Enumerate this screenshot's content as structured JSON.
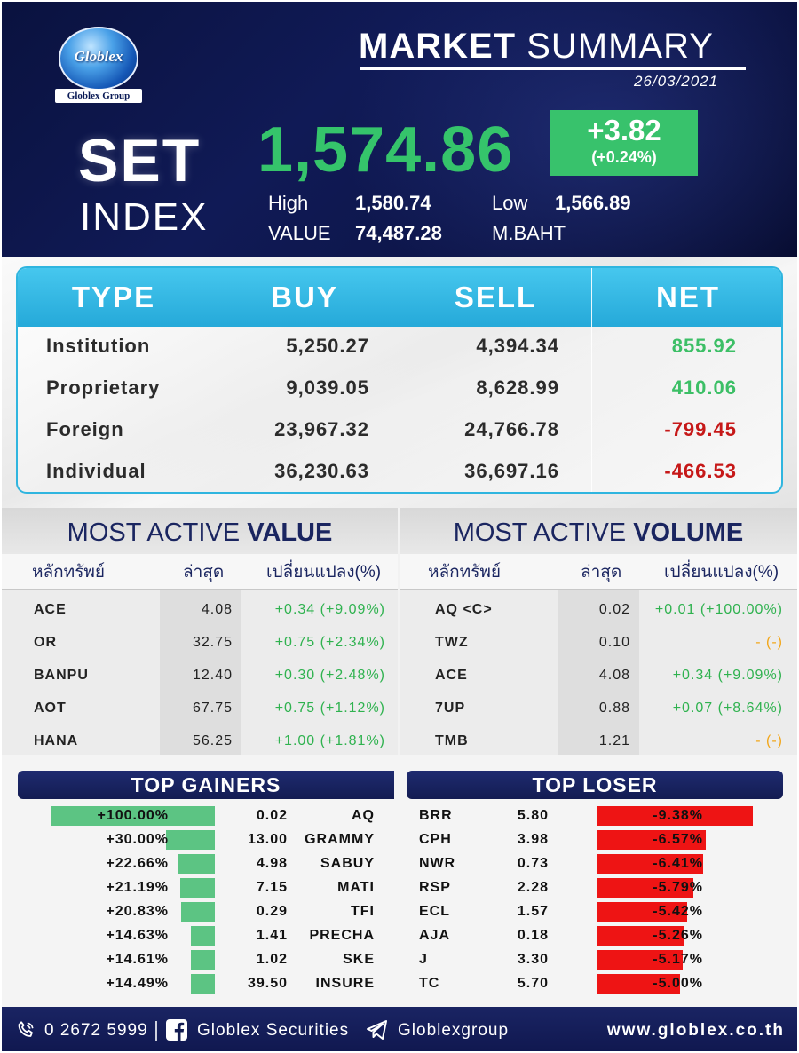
{
  "brand": {
    "logo_text": "Globlex",
    "group_text": "Globlex Group"
  },
  "header": {
    "title_bold": "MARKET",
    "title_light": "SUMMARY",
    "date": "26/03/2021",
    "index_name_1": "SET",
    "index_name_2": "INDEX",
    "index_value": "1,574.86",
    "change": "+3.82",
    "change_pct": "(+0.24%)",
    "high_label": "High",
    "high_value": "1,580.74",
    "low_label": "Low",
    "low_value": "1,566.89",
    "value_label": "VALUE",
    "value_value": "74,487.28",
    "unit": "M.BAHT",
    "accent_green": "#35c46b",
    "bg_navy": "#0d1548"
  },
  "investor_table": {
    "headers": [
      "TYPE",
      "BUY",
      "SELL",
      "NET"
    ],
    "rows": [
      {
        "type": "Institution",
        "buy": "5,250.27",
        "sell": "4,394.34",
        "net": "855.92",
        "net_sign": "pos"
      },
      {
        "type": "Proprietary",
        "buy": "9,039.05",
        "sell": "8,628.99",
        "net": "410.06",
        "net_sign": "pos"
      },
      {
        "type": "Foreign",
        "buy": "23,967.32",
        "sell": "24,766.78",
        "net": "-799.45",
        "net_sign": "neg"
      },
      {
        "type": "Individual",
        "buy": "36,230.63",
        "sell": "36,697.16",
        "net": "-466.53",
        "net_sign": "neg"
      }
    ],
    "header_color": "#2fb5df",
    "positive_color": "#3cbf66",
    "negative_color": "#c61818"
  },
  "most_active_value": {
    "title_light": "MOST ACTIVE",
    "title_bold": "VALUE",
    "col_symbol": "หลักทรัพย์",
    "col_last": "ล่าสุด",
    "col_change": "เปลี่ยนแปลง(%)",
    "rows": [
      {
        "symbol": "ACE",
        "last": "4.08",
        "change": "+0.34 (+9.09%)",
        "color": "green"
      },
      {
        "symbol": "OR",
        "last": "32.75",
        "change": "+0.75 (+2.34%)",
        "color": "green"
      },
      {
        "symbol": "BANPU",
        "last": "12.40",
        "change": "+0.30 (+2.48%)",
        "color": "green"
      },
      {
        "symbol": "AOT",
        "last": "67.75",
        "change": "+0.75 (+1.12%)",
        "color": "green"
      },
      {
        "symbol": "HANA",
        "last": "56.25",
        "change": "+1.00 (+1.81%)",
        "color": "green"
      }
    ]
  },
  "most_active_volume": {
    "title_light": "MOST ACTIVE",
    "title_bold": "VOLUME",
    "col_symbol": "หลักทรัพย์",
    "col_last": "ล่าสุด",
    "col_change": "เปลี่ยนแปลง(%)",
    "rows": [
      {
        "symbol": "AQ <C>",
        "last": "0.02",
        "change": "+0.01 (+100.00%)",
        "color": "green"
      },
      {
        "symbol": "TWZ",
        "last": "0.10",
        "change": "- (-)",
        "color": "yellow"
      },
      {
        "symbol": "ACE",
        "last": "4.08",
        "change": "+0.34 (+9.09%)",
        "color": "green"
      },
      {
        "symbol": "7UP",
        "last": "0.88",
        "change": "+0.07 (+8.64%)",
        "color": "green"
      },
      {
        "symbol": "TMB",
        "last": "1.21",
        "change": "- (-)",
        "color": "yellow"
      }
    ]
  },
  "top_gainers": {
    "title": "TOP GAINERS",
    "bar_color": "#5cc483",
    "rows": [
      {
        "pct": "+100.00%",
        "pct_value": 100.0,
        "price": "0.02",
        "symbol": "AQ"
      },
      {
        "pct": "+30.00%",
        "pct_value": 30.0,
        "price": "13.00",
        "symbol": "GRAMMY"
      },
      {
        "pct": "+22.66%",
        "pct_value": 22.66,
        "price": "4.98",
        "symbol": "SABUY"
      },
      {
        "pct": "+21.19%",
        "pct_value": 21.19,
        "price": "7.15",
        "symbol": "MATI"
      },
      {
        "pct": "+20.83%",
        "pct_value": 20.83,
        "price": "0.29",
        "symbol": "TFI"
      },
      {
        "pct": "+14.63%",
        "pct_value": 14.63,
        "price": "1.41",
        "symbol": "PRECHA"
      },
      {
        "pct": "+14.61%",
        "pct_value": 14.61,
        "price": "1.02",
        "symbol": "SKE"
      },
      {
        "pct": "+14.49%",
        "pct_value": 14.49,
        "price": "39.50",
        "symbol": "INSURE"
      }
    ]
  },
  "top_loser": {
    "title": "TOP LOSER",
    "bar_color": "#ee1414",
    "rows": [
      {
        "symbol": "BRR",
        "price": "5.80",
        "pct": "-9.38%",
        "pct_value": -9.38
      },
      {
        "symbol": "CPH",
        "price": "3.98",
        "pct": "-6.57%",
        "pct_value": -6.57
      },
      {
        "symbol": "NWR",
        "price": "0.73",
        "pct": "-6.41%",
        "pct_value": -6.41
      },
      {
        "symbol": "RSP",
        "price": "2.28",
        "pct": "-5.79%",
        "pct_value": -5.79
      },
      {
        "symbol": "ECL",
        "price": "1.57",
        "pct": "-5.42%",
        "pct_value": -5.42
      },
      {
        "symbol": "AJA",
        "price": "0.18",
        "pct": "-5.26%",
        "pct_value": -5.26
      },
      {
        "symbol": "J",
        "price": "3.30",
        "pct": "-5.17%",
        "pct_value": -5.17
      },
      {
        "symbol": "TC",
        "price": "5.70",
        "pct": "-5.00%",
        "pct_value": -5.0
      }
    ]
  },
  "footer": {
    "phone": "0 2672 5999",
    "facebook": "Globlex Securities",
    "telegram": "Globlexgroup",
    "website": "www.globlex.co.th",
    "icons": [
      "phone-icon",
      "facebook-icon",
      "telegram-icon"
    ]
  }
}
